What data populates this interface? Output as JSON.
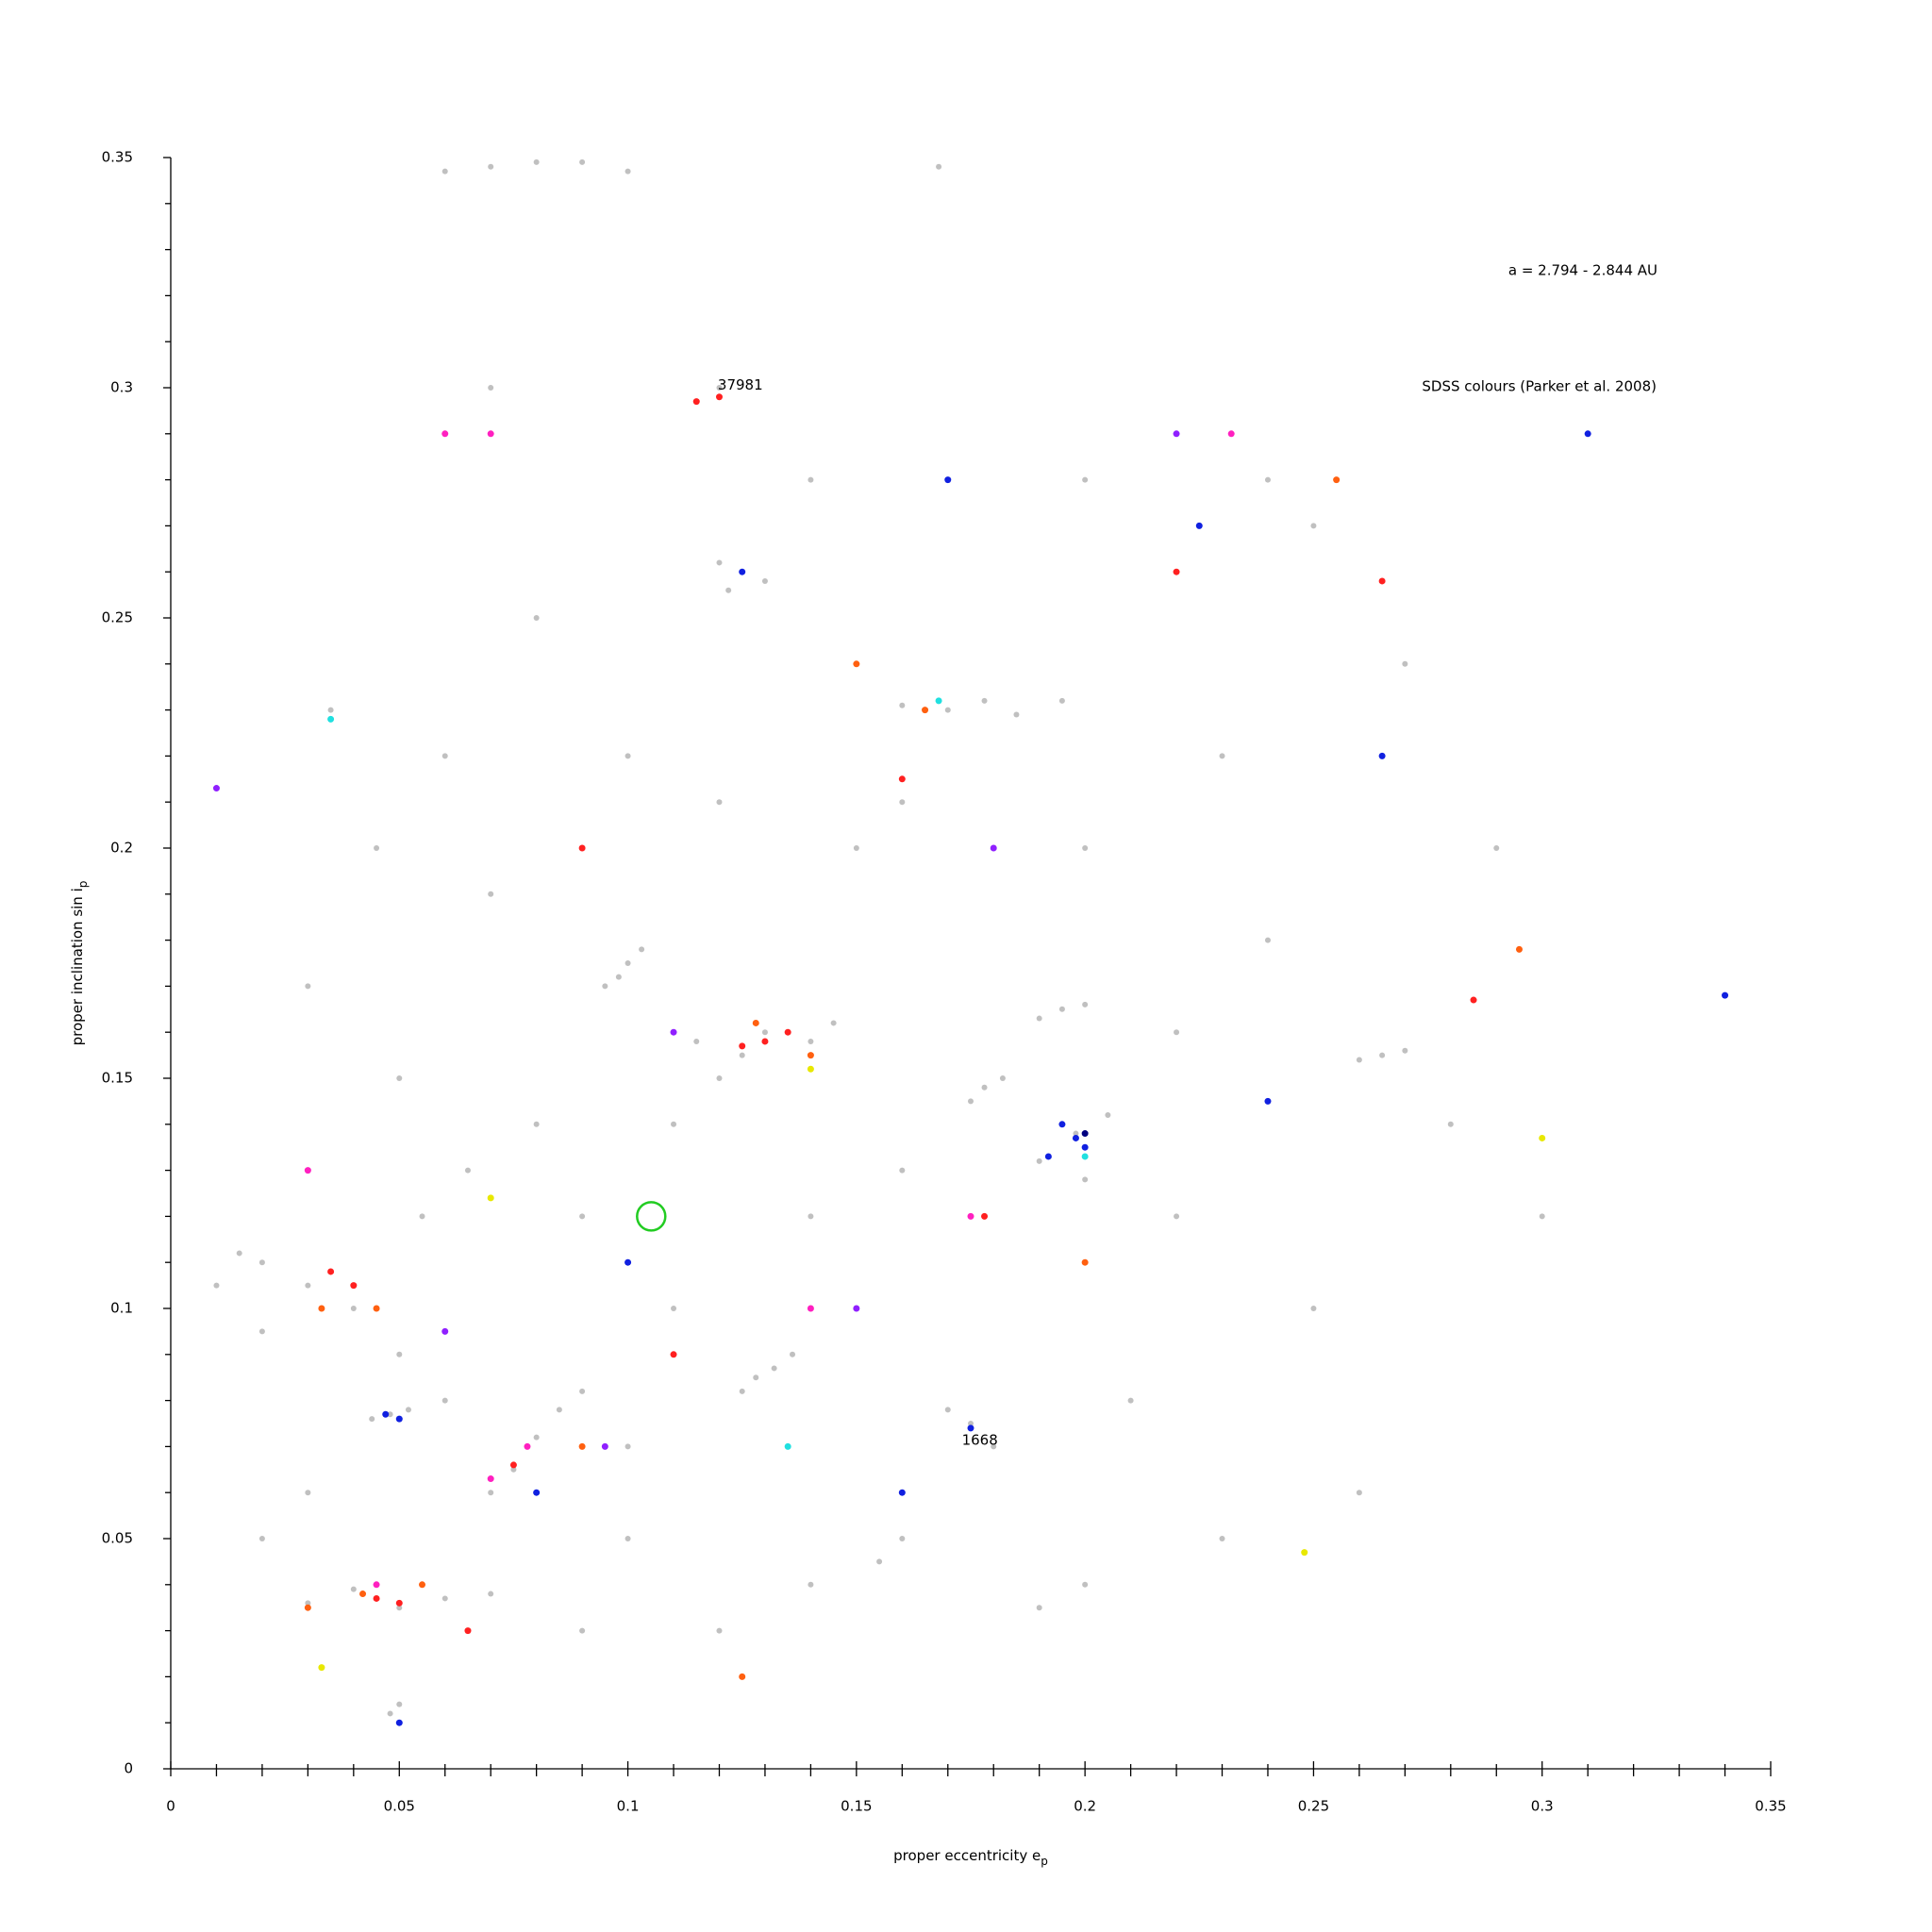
{
  "chart_data": {
    "type": "scatter",
    "xlabel": "proper eccentricity e",
    "xlabel_sub": "p",
    "ylabel": "proper inclination sin i",
    "ylabel_sub": "p",
    "xlim": [
      0,
      0.35
    ],
    "ylim": [
      0,
      0.35
    ],
    "xticks": [
      0,
      0.05,
      0.1,
      0.15,
      0.2,
      0.25,
      0.3,
      0.35
    ],
    "yticks": [
      0,
      0.05,
      0.1,
      0.15,
      0.2,
      0.25,
      0.3,
      0.35
    ],
    "xminorticks": [
      0.01,
      0.02,
      0.03,
      0.04,
      0.06,
      0.07,
      0.08,
      0.09,
      0.11,
      0.12,
      0.13,
      0.14,
      0.16,
      0.17,
      0.18,
      0.19,
      0.21,
      0.22,
      0.23,
      0.24,
      0.26,
      0.27,
      0.28,
      0.29,
      0.31,
      0.32,
      0.33,
      0.34
    ],
    "yminorticks": [
      0.01,
      0.02,
      0.03,
      0.04,
      0.06,
      0.07,
      0.08,
      0.09,
      0.11,
      0.12,
      0.13,
      0.14,
      0.16,
      0.17,
      0.18,
      0.19,
      0.21,
      0.22,
      0.23,
      0.24,
      0.26,
      0.27,
      0.28,
      0.29,
      0.31,
      0.32,
      0.33,
      0.34
    ],
    "range_note": "a = 2.794 - 2.844 AU",
    "colour_note": "SDSS colours (Parker et al. 2008)",
    "annotations": [
      {
        "text": "37981",
        "x": 0.1246,
        "y": 0.3005
      },
      {
        "text": "1668",
        "x": 0.177,
        "y": 0.0713
      }
    ],
    "highlight": {
      "x": 0.1051,
      "y": 0.12,
      "color": "#22cc22"
    },
    "series": [
      {
        "color": "#c0c0c0",
        "x": [
          0.08,
          0.07,
          0.09,
          0.06,
          0.1,
          0.168,
          0.125,
          0.12,
          0.13,
          0.122,
          0.178,
          0.17,
          0.185,
          0.16,
          0.195,
          0.1,
          0.098,
          0.103,
          0.095,
          0.13,
          0.125,
          0.14,
          0.12,
          0.145,
          0.115,
          0.198,
          0.19,
          0.205,
          0.2,
          0.195,
          0.19,
          0.2,
          0.178,
          0.175,
          0.182,
          0.265,
          0.26,
          0.27,
          0.132,
          0.128,
          0.136,
          0.125,
          0.048,
          0.044,
          0.052,
          0.048,
          0.05,
          0.045,
          0.04,
          0.05,
          0.06,
          0.07,
          0.03,
          0.075,
          0.08,
          0.085,
          0.07,
          0.09,
          0.03,
          0.02,
          0.04,
          0.05,
          0.06,
          0.015,
          0.01,
          0.02,
          0.175,
          0.18,
          0.17,
          0.16,
          0.155,
          0.19,
          0.2,
          0.15,
          0.1,
          0.06,
          0.08,
          0.12,
          0.16,
          0.2,
          0.23,
          0.24,
          0.22,
          0.25,
          0.26,
          0.14,
          0.11,
          0.08,
          0.05,
          0.03,
          0.07,
          0.09,
          0.11,
          0.15,
          0.16,
          0.22,
          0.28,
          0.3,
          0.24,
          0.2,
          0.06,
          0.07,
          0.12,
          0.14,
          0.25,
          0.03,
          0.02,
          0.1,
          0.12,
          0.14,
          0.21,
          0.23,
          0.29,
          0.27,
          0.035,
          0.045,
          0.09,
          0.1,
          0.055,
          0.065
        ],
        "values": [
          0.349,
          0.348,
          0.349,
          0.347,
          0.347,
          0.348,
          0.26,
          0.262,
          0.258,
          0.256,
          0.232,
          0.23,
          0.229,
          0.231,
          0.232,
          0.175,
          0.172,
          0.178,
          0.17,
          0.16,
          0.155,
          0.158,
          0.15,
          0.162,
          0.158,
          0.138,
          0.132,
          0.142,
          0.128,
          0.165,
          0.163,
          0.166,
          0.148,
          0.145,
          0.15,
          0.155,
          0.154,
          0.156,
          0.087,
          0.085,
          0.09,
          0.082,
          0.077,
          0.076,
          0.078,
          0.012,
          0.014,
          0.037,
          0.039,
          0.035,
          0.037,
          0.038,
          0.036,
          0.065,
          0.072,
          0.078,
          0.06,
          0.082,
          0.105,
          0.11,
          0.1,
          0.09,
          0.08,
          0.112,
          0.105,
          0.095,
          0.075,
          0.07,
          0.078,
          0.05,
          0.045,
          0.035,
          0.04,
          0.2,
          0.22,
          0.22,
          0.25,
          0.21,
          0.21,
          0.2,
          0.22,
          0.18,
          0.12,
          0.1,
          0.06,
          0.12,
          0.14,
          0.14,
          0.15,
          0.17,
          0.19,
          0.12,
          0.1,
          0.1,
          0.13,
          0.16,
          0.14,
          0.12,
          0.28,
          0.28,
          0.29,
          0.3,
          0.3,
          0.28,
          0.27,
          0.06,
          0.05,
          0.05,
          0.03,
          0.04,
          0.08,
          0.05,
          0.2,
          0.24,
          0.23,
          0.2,
          0.03,
          0.07,
          0.12,
          0.13
        ]
      },
      {
        "color": "#ff2020",
        "x": [
          0.13,
          0.125,
          0.135,
          0.04,
          0.035,
          0.045,
          0.05,
          0.075,
          0.12,
          0.115,
          0.16,
          0.22,
          0.265,
          0.178,
          0.285,
          0.065,
          0.11,
          0.09
        ],
        "values": [
          0.158,
          0.157,
          0.16,
          0.105,
          0.108,
          0.037,
          0.036,
          0.066,
          0.298,
          0.297,
          0.215,
          0.26,
          0.258,
          0.12,
          0.167,
          0.03,
          0.09,
          0.2
        ]
      },
      {
        "color": "#ff6010",
        "x": [
          0.14,
          0.128,
          0.042,
          0.03,
          0.055,
          0.033,
          0.045,
          0.125,
          0.295,
          0.255,
          0.165,
          0.15,
          0.09,
          0.2
        ],
        "values": [
          0.155,
          0.162,
          0.038,
          0.035,
          0.04,
          0.1,
          0.1,
          0.02,
          0.178,
          0.28,
          0.23,
          0.24,
          0.07,
          0.11
        ]
      },
      {
        "color": "#1020e0",
        "x": [
          0.198,
          0.195,
          0.2,
          0.192,
          0.047,
          0.05,
          0.125,
          0.17,
          0.175,
          0.16,
          0.24,
          0.265,
          0.225,
          0.08,
          0.05,
          0.1,
          0.34,
          0.31
        ],
        "values": [
          0.137,
          0.14,
          0.135,
          0.133,
          0.077,
          0.076,
          0.26,
          0.28,
          0.074,
          0.06,
          0.145,
          0.22,
          0.27,
          0.06,
          0.01,
          0.11,
          0.168,
          0.29
        ]
      },
      {
        "color": "#ff20c0",
        "x": [
          0.07,
          0.078,
          0.06,
          0.07,
          0.232,
          0.175,
          0.03,
          0.14,
          0.045
        ],
        "values": [
          0.063,
          0.07,
          0.29,
          0.29,
          0.29,
          0.12,
          0.13,
          0.1,
          0.04
        ]
      },
      {
        "color": "#9020ff",
        "x": [
          0.11,
          0.18,
          0.01,
          0.22,
          0.06,
          0.095,
          0.15
        ],
        "values": [
          0.16,
          0.2,
          0.213,
          0.29,
          0.095,
          0.07,
          0.1
        ]
      },
      {
        "color": "#e8e800",
        "x": [
          0.07,
          0.14,
          0.3,
          0.248,
          0.033
        ],
        "values": [
          0.124,
          0.152,
          0.137,
          0.047,
          0.022
        ]
      },
      {
        "color": "#20e0e0",
        "x": [
          0.035,
          0.2,
          0.135,
          0.168
        ],
        "values": [
          0.228,
          0.133,
          0.07,
          0.232
        ]
      },
      {
        "color": "#000080",
        "x": [
          0.2
        ],
        "values": [
          0.138
        ]
      }
    ]
  }
}
